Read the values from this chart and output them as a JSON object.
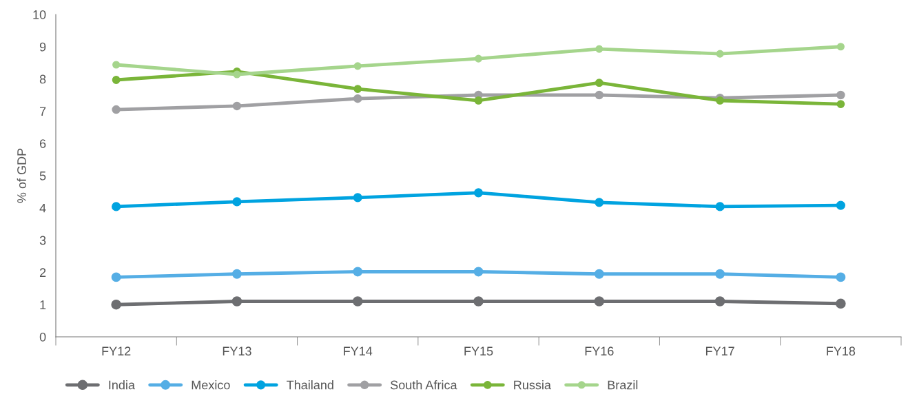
{
  "chart_data": {
    "type": "line",
    "ylabel": "% of GDP",
    "categories": [
      "FY12",
      "FY13",
      "FY14",
      "FY15",
      "FY16",
      "FY17",
      "FY18"
    ],
    "ylim": [
      0,
      10
    ],
    "yticks": [
      0,
      1,
      2,
      3,
      4,
      5,
      6,
      7,
      8,
      9,
      10
    ],
    "grid": false,
    "legend": "bottom",
    "marker": "circle",
    "line_style": "solid",
    "series": [
      {
        "name": "India",
        "color": "#6d6e71",
        "values": [
          1.0,
          1.1,
          1.1,
          1.1,
          1.1,
          1.1,
          1.03
        ]
      },
      {
        "name": "Mexico",
        "color": "#55aee5",
        "values": [
          1.85,
          1.95,
          2.02,
          2.02,
          1.95,
          1.95,
          1.85
        ]
      },
      {
        "name": "Thailand",
        "color": "#00a3e0",
        "values": [
          4.04,
          4.19,
          4.32,
          4.47,
          4.17,
          4.04,
          4.08
        ]
      },
      {
        "name": "South Africa",
        "color": "#a0a0a3",
        "values": [
          7.05,
          7.16,
          7.39,
          7.5,
          7.5,
          7.41,
          7.5
        ]
      },
      {
        "name": "Russia",
        "color": "#7ab539",
        "values": [
          7.97,
          8.23,
          7.69,
          7.33,
          7.88,
          7.33,
          7.22
        ]
      },
      {
        "name": "Brazil",
        "color": "#a5d58c",
        "values": [
          8.44,
          8.14,
          8.4,
          8.63,
          8.93,
          8.78,
          9.0
        ]
      }
    ]
  }
}
